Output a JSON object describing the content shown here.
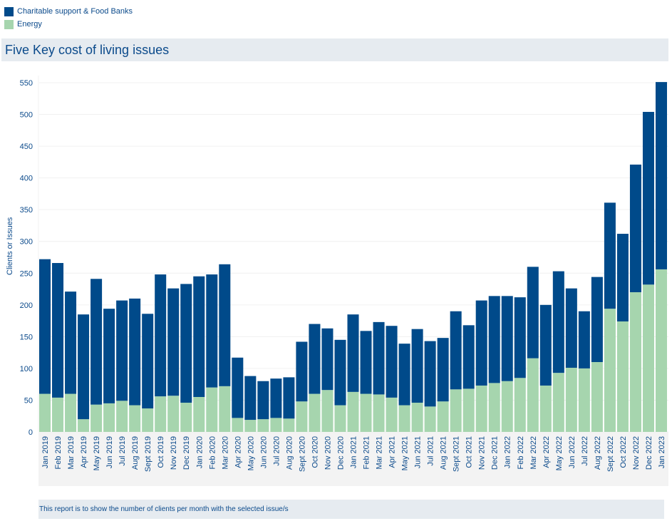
{
  "legend": [
    {
      "label": "Charitable support & Food Banks",
      "color": "#004a8a"
    },
    {
      "label": "Energy",
      "color": "#a6d5ae"
    }
  ],
  "title": "Five Key cost of living issues",
  "footer": "This report is to show the number of clients per month with the selected issue/s",
  "chart_data": {
    "type": "bar",
    "stacked": true,
    "title": "Five Key cost of living issues",
    "xlabel": "",
    "ylabel": "Clients or Issues",
    "ylim": [
      0,
      550
    ],
    "yticks": [
      0,
      50,
      100,
      150,
      200,
      250,
      300,
      350,
      400,
      450,
      500,
      550
    ],
    "grid": true,
    "legend_position": "top-left",
    "categories": [
      "Jan 2019",
      "Feb 2019",
      "Mar 2019",
      "Apr 2019",
      "May 2019",
      "Jun 2019",
      "Jul 2019",
      "Aug 2019",
      "Sept 2019",
      "Oct 2019",
      "Nov 2019",
      "Dec 2019",
      "Jan 2020",
      "Feb 2020",
      "Mar 2020",
      "Apr 2020",
      "May 2020",
      "Jun 2020",
      "Jul 2020",
      "Aug 2020",
      "Sept 2020",
      "Oct 2020",
      "Nov 2020",
      "Dec 2020",
      "Jan 2021",
      "Feb 2021",
      "Mar 2021",
      "Apr 2021",
      "May 2021",
      "Jun 2021",
      "Jul 2021",
      "Aug 2021",
      "Sept 2021",
      "Oct 2021",
      "Nov 2021",
      "Dec 2021",
      "Jan 2022",
      "Feb 2022",
      "Mar 2022",
      "Apr 2022",
      "May 2022",
      "Jun 2022",
      "Jul 2022",
      "Aug 2022",
      "Sept 2022",
      "Oct 2022",
      "Nov 2022",
      "Dec 2022",
      "Jan 2023"
    ],
    "series": [
      {
        "name": "Energy",
        "color": "#a6d5ae",
        "values": [
          60,
          54,
          60,
          20,
          43,
          45,
          49,
          42,
          37,
          56,
          57,
          46,
          55,
          70,
          72,
          22,
          19,
          20,
          22,
          21,
          48,
          60,
          66,
          42,
          63,
          60,
          59,
          54,
          42,
          46,
          40,
          48,
          67,
          68,
          73,
          77,
          80,
          85,
          116,
          73,
          93,
          101,
          100,
          110,
          194,
          174,
          220,
          232,
          256
        ]
      },
      {
        "name": "Charitable support & Food Banks",
        "color": "#004a8a",
        "values": [
          212,
          212,
          161,
          165,
          198,
          149,
          158,
          168,
          149,
          192,
          169,
          187,
          190,
          178,
          192,
          95,
          69,
          60,
          62,
          65,
          94,
          110,
          97,
          103,
          122,
          99,
          114,
          113,
          97,
          116,
          103,
          100,
          123,
          100,
          134,
          137,
          134,
          127,
          144,
          127,
          160,
          125,
          90,
          134,
          167,
          138,
          201,
          272,
          295
        ]
      }
    ]
  }
}
